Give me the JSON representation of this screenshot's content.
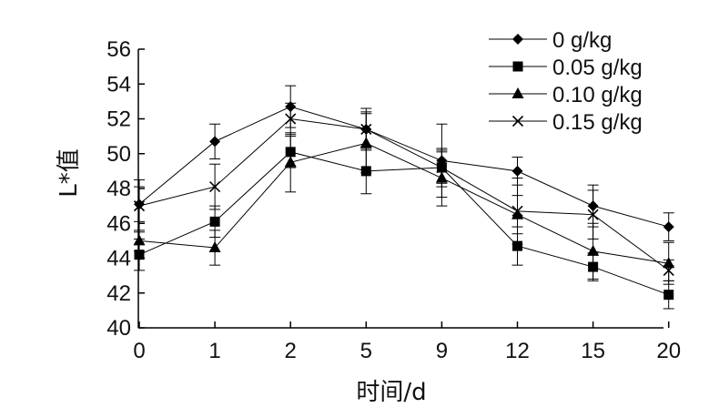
{
  "chart_data": {
    "type": "line",
    "categories": [
      "0",
      "1",
      "2",
      "5",
      "9",
      "12",
      "15",
      "20"
    ],
    "xlabel": "时间/d",
    "ylabel": "L*值",
    "ylim": [
      40,
      56
    ],
    "yticks": [
      40,
      42,
      44,
      46,
      48,
      50,
      52,
      54,
      56
    ],
    "grid": false,
    "legend_position": "top-right",
    "series": [
      {
        "name": "0 g/kg",
        "marker": "diamond",
        "values": [
          47.1,
          50.7,
          52.7,
          51.4,
          49.6,
          49.0,
          47.0,
          45.8
        ],
        "errors": [
          1.0,
          1.0,
          1.2,
          1.0,
          2.1,
          0.8,
          1.2,
          0.8
        ]
      },
      {
        "name": "0.05 g/kg",
        "marker": "square",
        "values": [
          44.2,
          46.1,
          50.1,
          49.0,
          49.2,
          44.7,
          43.5,
          41.9
        ],
        "errors": [
          0.9,
          0.9,
          0.9,
          1.3,
          1.1,
          1.1,
          0.8,
          0.8
        ]
      },
      {
        "name": "0.10 g/kg",
        "marker": "triangle",
        "values": [
          45.0,
          44.6,
          49.5,
          50.6,
          48.6,
          46.5,
          44.4,
          43.7
        ],
        "errors": [
          0.6,
          1.0,
          1.7,
          1.7,
          1.6,
          1.1,
          1.6,
          1.2
        ]
      },
      {
        "name": "0.15 g/kg",
        "marker": "cross",
        "values": [
          47.0,
          48.1,
          52.0,
          51.4,
          49.2,
          46.7,
          46.5,
          43.3
        ],
        "errors": [
          1.5,
          1.3,
          0.9,
          1.2,
          0.9,
          1.9,
          1.4,
          0.6
        ]
      }
    ]
  }
}
